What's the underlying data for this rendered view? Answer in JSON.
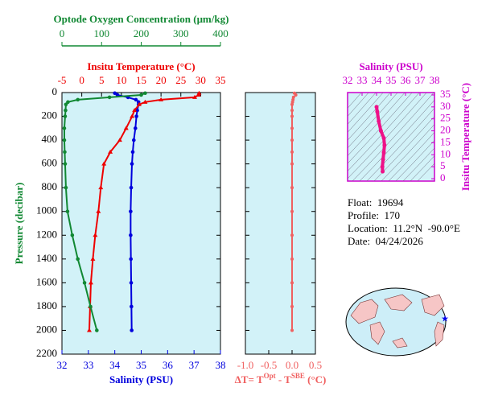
{
  "chart_data": [
    {
      "type": "profile",
      "ylabel": "Pressure (decibar)",
      "ylim": [
        2200,
        0
      ],
      "yticks": [
        0,
        200,
        400,
        600,
        800,
        1000,
        1200,
        1400,
        1600,
        1800,
        2000,
        2200
      ],
      "xlabel": "Salinity (PSU)",
      "xlim": [
        32,
        38
      ],
      "xticks": [
        32,
        33,
        34,
        35,
        36,
        37,
        38
      ],
      "x2label": "Insitu Temperature (°C)",
      "x2lim": [
        -5,
        35
      ],
      "x2ticks": [
        -5,
        0,
        5,
        10,
        15,
        20,
        25,
        30,
        35
      ],
      "x3label": "Optode Oxygen Concentration (μm/kg)",
      "x3lim": [
        0,
        400
      ],
      "x3ticks": [
        0,
        100,
        200,
        300,
        400
      ],
      "pressure": [
        5,
        20,
        40,
        60,
        80,
        100,
        150,
        200,
        300,
        400,
        500,
        600,
        800,
        1000,
        1200,
        1400,
        1600,
        1800,
        2000
      ],
      "series": [
        {
          "axis": "x",
          "color": "#0000dd",
          "values": [
            34.0,
            34.1,
            34.5,
            34.8,
            34.9,
            34.9,
            34.85,
            34.82,
            34.78,
            34.72,
            34.68,
            34.65,
            34.62,
            34.6,
            34.6,
            34.61,
            34.62,
            34.63,
            34.64
          ]
        },
        {
          "axis": "x2",
          "color": "#ee0000",
          "values": [
            29.6,
            29.5,
            28.5,
            20,
            16,
            14.5,
            13.3,
            12.7,
            11.2,
            9.6,
            7.2,
            5.6,
            4.8,
            4.2,
            3.4,
            2.8,
            2.3,
            2.1,
            1.9
          ]
        },
        {
          "axis": "x3",
          "color": "#118833",
          "values": [
            210,
            200,
            120,
            40,
            15,
            10,
            9,
            8,
            6,
            6,
            7,
            8,
            10,
            14,
            26,
            40,
            57,
            72,
            88
          ]
        }
      ]
    },
    {
      "type": "difference",
      "xlabel": [
        "ΔT= T",
        "Opt",
        " - T",
        "SBE",
        " (°C)"
      ],
      "xlim": [
        -1,
        0.5
      ],
      "xticks": [
        {
          "value": -1,
          "label": "-1.0"
        },
        -0.5,
        {
          "value": 0,
          "label": "0.0"
        },
        0.5
      ],
      "ylim": [
        2200,
        0
      ],
      "yticks": [
        0,
        200,
        400,
        600,
        800,
        1000,
        1200,
        1400,
        1600,
        1800,
        2000,
        2200
      ],
      "color": "#f06060",
      "pressure": [
        5,
        20,
        40,
        60,
        80,
        100,
        150,
        200,
        300,
        400,
        500,
        600,
        800,
        1000,
        1200,
        1400,
        1600,
        1800,
        2000
      ],
      "values": [
        0.05,
        0.08,
        0.03,
        0.02,
        0.01,
        0,
        0,
        0,
        0,
        0,
        0,
        0,
        0,
        0,
        0,
        0,
        0,
        0,
        0
      ]
    },
    {
      "type": "ts",
      "xlabel": "Salinity (PSU)",
      "xlim": [
        32,
        38
      ],
      "xticks": [
        32,
        33,
        34,
        35,
        36,
        37,
        38
      ],
      "ylabel": "Insitu Temperature (°C)",
      "ylim": [
        -1,
        36
      ],
      "yticks": [
        0,
        5,
        10,
        15,
        20,
        25,
        30,
        35
      ],
      "color": "#ee1188",
      "x": [
        34.0,
        34.05,
        34.15,
        34.3,
        34.5,
        34.55,
        34.5,
        34.45,
        34.4,
        34.42
      ],
      "values": [
        30,
        28,
        24,
        20,
        17,
        14,
        11,
        8,
        5,
        3
      ]
    }
  ],
  "info": [
    "Float:  19694",
    "Profile:  170",
    "Location:  11.2°N  -90.0°E",
    "Date:  04/24/2026"
  ]
}
